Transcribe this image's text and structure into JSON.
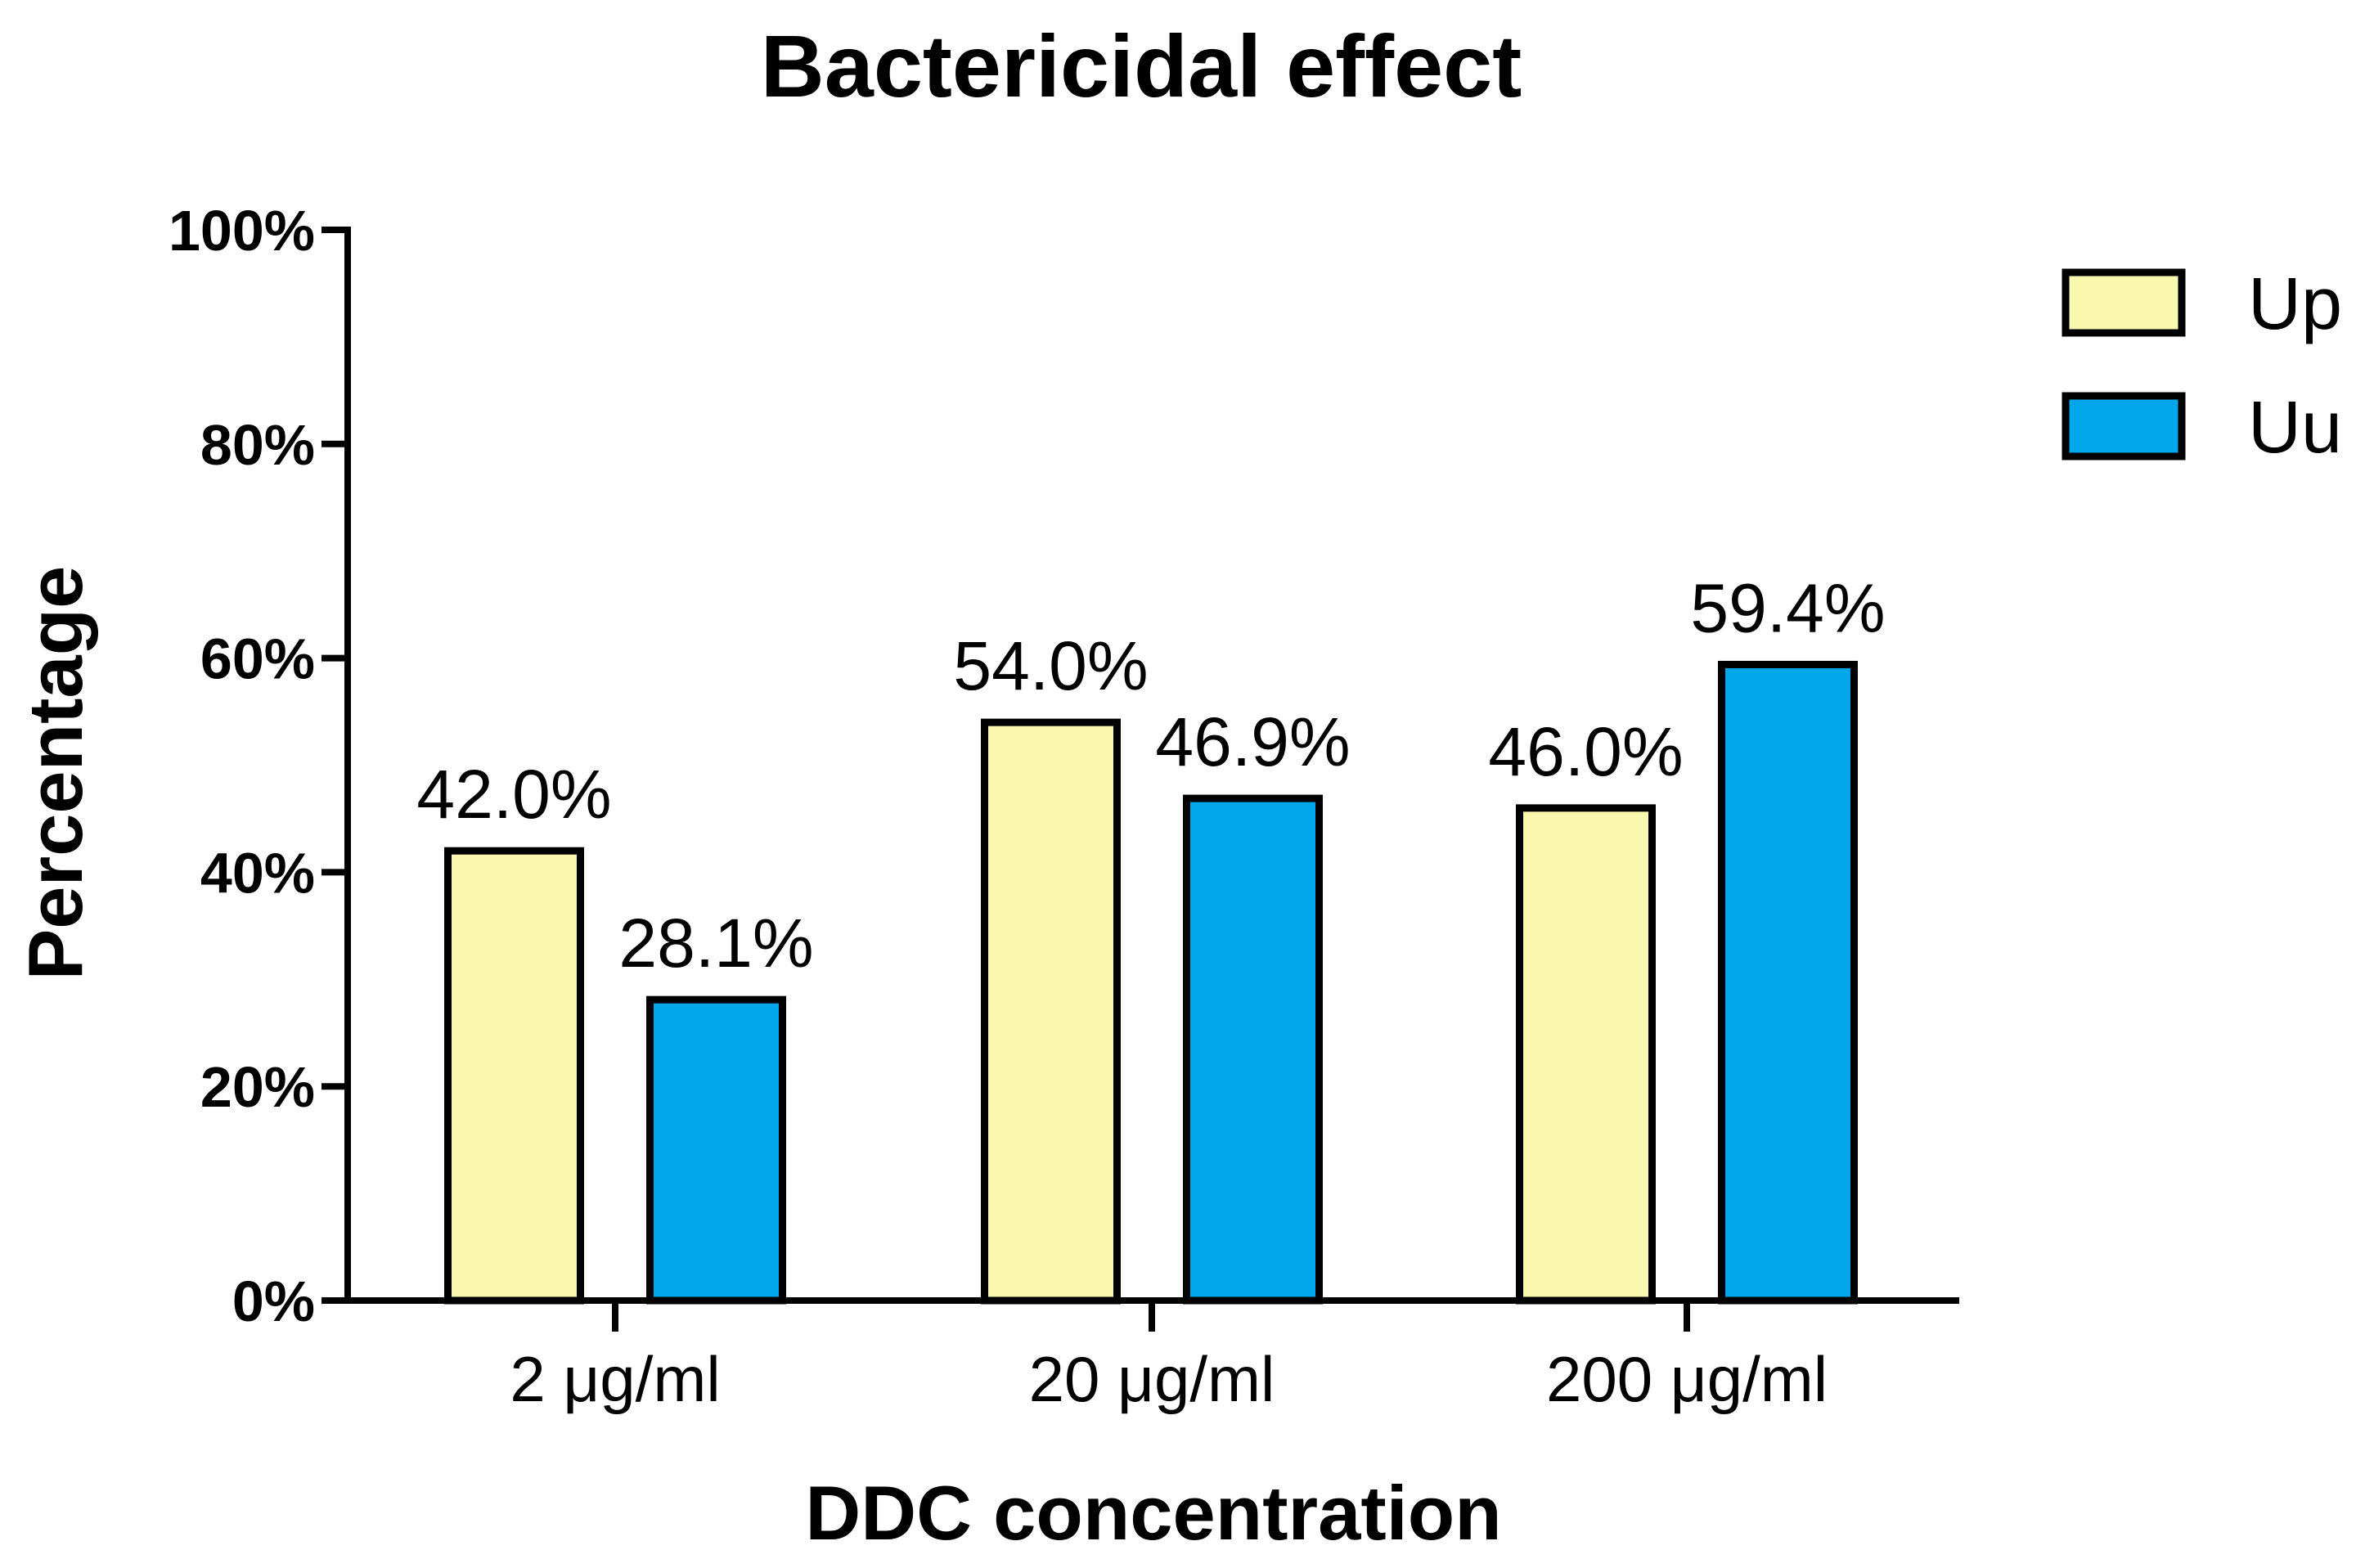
{
  "colors": {
    "series_up": "#FAF8AF",
    "series_uu": "#00A6EA",
    "outline": "#000000",
    "background": "#FFFFFF"
  },
  "chart_data": {
    "type": "bar",
    "title": "Bactericidal effect",
    "xlabel": "DDC concentration",
    "ylabel": "Percentage",
    "categories": [
      "2 μg/ml",
      "20 μg/ml",
      "200 μg/ml"
    ],
    "series": [
      {
        "name": "Up",
        "values": [
          42.0,
          54.0,
          46.0
        ],
        "labels": [
          "42.0%",
          "54.0%",
          "46.0%"
        ]
      },
      {
        "name": "Uu",
        "values": [
          28.1,
          46.9,
          59.4
        ],
        "labels": [
          "28.1%",
          "46.9%",
          "59.4%"
        ]
      }
    ],
    "ylim": [
      0,
      100
    ],
    "yticks": [
      0,
      20,
      40,
      60,
      80,
      100
    ],
    "ytick_labels": [
      "0%",
      "20%",
      "40%",
      "60%",
      "80%",
      "100%"
    ],
    "grid": false,
    "legend_position": "top-right"
  }
}
